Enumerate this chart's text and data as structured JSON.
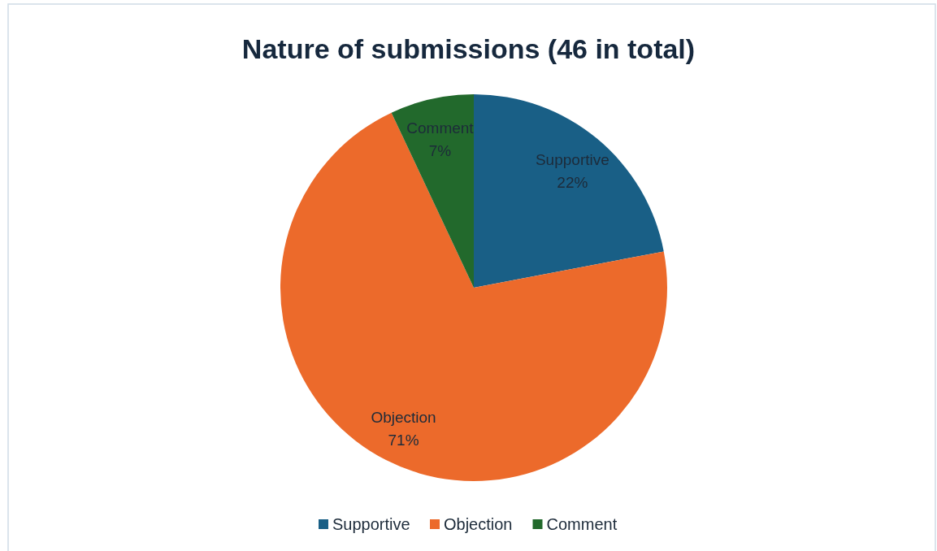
{
  "chart_data": {
    "type": "pie",
    "title": "Nature of submissions (46 in total)",
    "categories": [
      "Supportive",
      "Objection",
      "Comment"
    ],
    "values": [
      22,
      71,
      7
    ],
    "value_labels": [
      "22%",
      "71%",
      "7%"
    ],
    "colors": [
      "#195f86",
      "#ec6a2b",
      "#22692c"
    ],
    "legend": "bottom"
  }
}
